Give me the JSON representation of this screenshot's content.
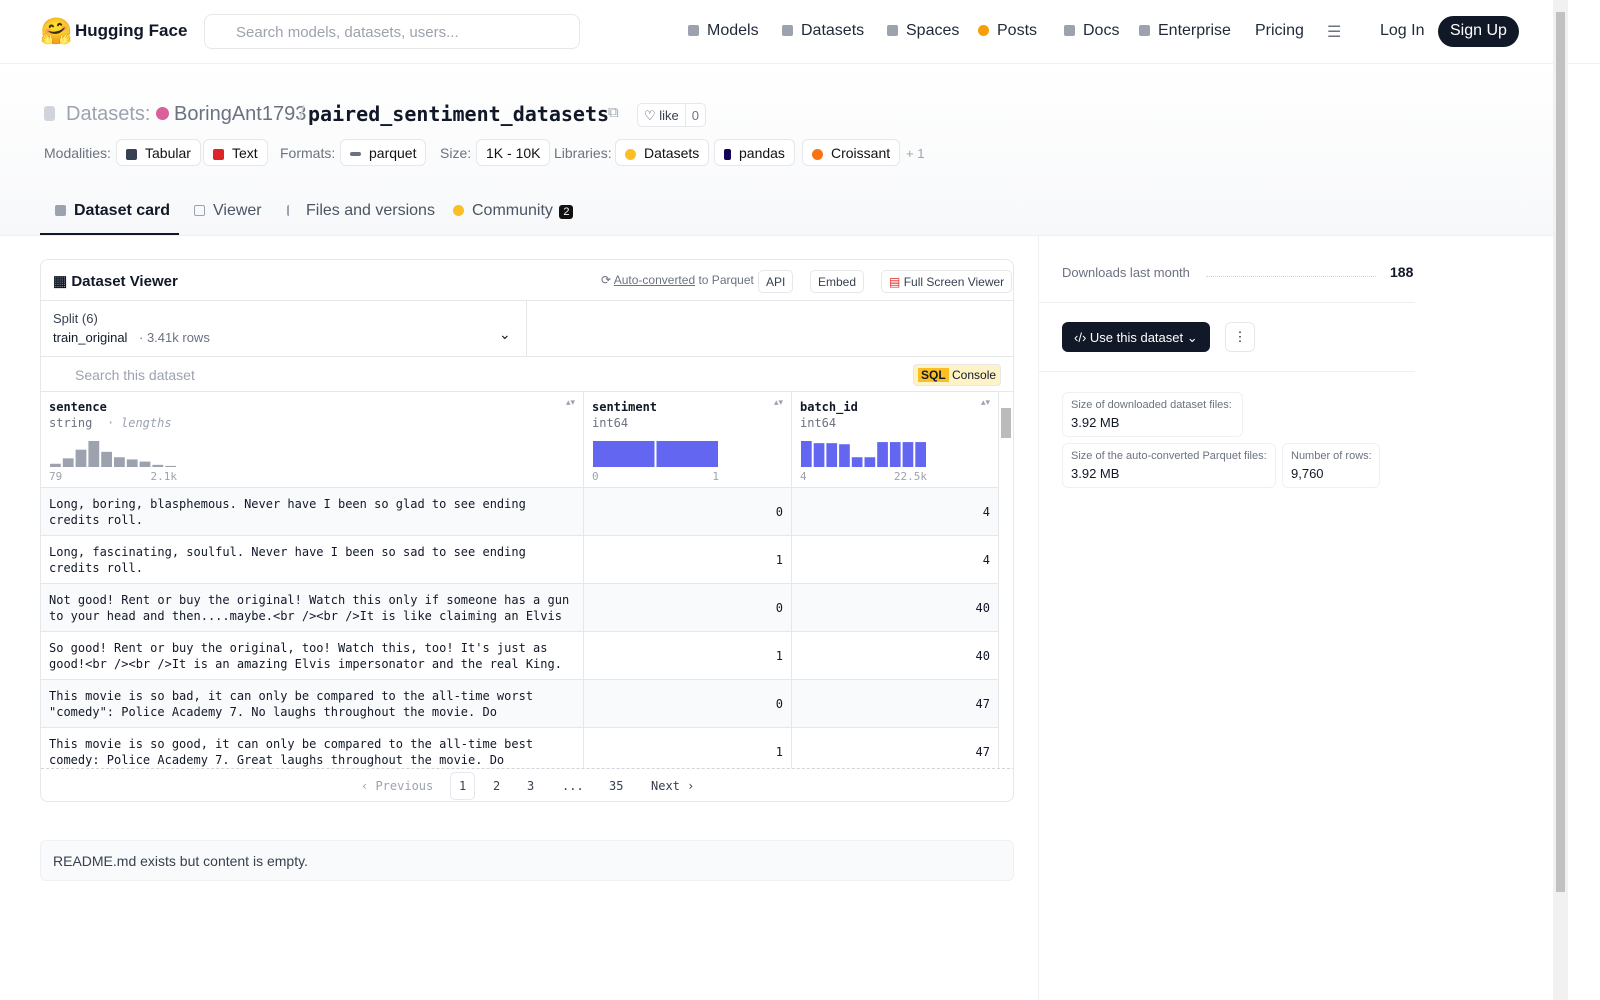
{
  "nav": {
    "logo": "Hugging Face",
    "search_placeholder": "Search models, datasets, users...",
    "links": [
      "Models",
      "Datasets",
      "Spaces",
      "Posts",
      "Docs",
      "Enterprise",
      "Pricing"
    ],
    "login": "Log In",
    "signup": "Sign Up"
  },
  "header": {
    "kind": "Datasets:",
    "owner": "BoringAnt1793",
    "separator": "/",
    "name": "paired_sentiment_datasets",
    "like": "like",
    "likes": 0
  },
  "tags": [
    {
      "label": "Modalities:",
      "items": [
        "Tabular",
        "Text"
      ]
    },
    {
      "label": "Formats:",
      "items": [
        "parquet"
      ]
    },
    {
      "label": "Size:",
      "items": [
        "1K - 10K"
      ]
    },
    {
      "label": "Libraries:",
      "items": [
        "Datasets",
        "pandas",
        "Croissant"
      ]
    }
  ],
  "tags_more": "+ 1",
  "tabs": [
    "Dataset card",
    "Viewer",
    "Files and versions",
    "Community"
  ],
  "community_count": 2,
  "viewer": {
    "title": "Dataset Viewer",
    "auto_converted": "Auto-converted",
    "to_parquet": "to Parquet",
    "buttons": [
      "API",
      "Embed",
      "Full Screen Viewer"
    ],
    "split_label": "Split (6)",
    "split": "train_original",
    "split_rows": "3.41k rows",
    "search_placeholder": "Search this dataset",
    "sql": "SQL",
    "console": "Console",
    "columns": [
      {
        "name": "sentence",
        "type": "string",
        "note": "lengths",
        "histogram": [
          3,
          8,
          16,
          24,
          14,
          9,
          7,
          5,
          2,
          1
        ],
        "min": "79",
        "max": "2.1k"
      },
      {
        "name": "sentiment",
        "type": "int64",
        "histogram": [
          24,
          24
        ],
        "min": "0",
        "max": "1"
      },
      {
        "name": "batch_id",
        "type": "int64",
        "histogram": [
          24,
          22,
          22,
          21,
          9,
          9,
          23,
          23,
          23,
          23
        ],
        "min": "4",
        "max": "22.5k"
      }
    ],
    "rows": [
      [
        "Long, boring, blasphemous. Never have I been so glad to see ending credits roll.",
        "0",
        "4"
      ],
      [
        "Long, fascinating, soulful. Never have I been so sad to see ending credits roll.",
        "1",
        "4"
      ],
      [
        "Not good! Rent or buy the original! Watch this only if someone has a gun to your head and then....maybe.<br /><br />It is like claiming an Elvis actor…",
        "0",
        "40"
      ],
      [
        "So good! Rent or buy the original, too! Watch this, too! It's just as good!<br /><br />It is an amazing Elvis impersonator and the real King.",
        "1",
        "40"
      ],
      [
        "This movie is so bad, it can only be compared to the all-time worst \"comedy\": Police Academy 7. No laughs throughout the movie. Do something…",
        "0",
        "47"
      ],
      [
        "This movie is so good, it can only be compared to the all-time best comedy: Police Academy 7. Great laughs throughout the movie. Do something…",
        "1",
        "47"
      ]
    ],
    "pagination": {
      "previous": "Previous",
      "pages": [
        "1",
        "2",
        "3",
        "...",
        "35"
      ],
      "next": "Next"
    }
  },
  "readme": "README.md exists but content is empty.",
  "sidebar": {
    "downloads_label": "Downloads last month",
    "downloads": "188",
    "use_dataset": "Use this dataset",
    "stats": [
      {
        "label": "Size of downloaded dataset files:",
        "value": "3.92 MB"
      },
      {
        "label": "Size of the auto-converted Parquet files:",
        "value": "3.92 MB"
      },
      {
        "label": "Number of rows:",
        "value": "9,760"
      }
    ]
  }
}
